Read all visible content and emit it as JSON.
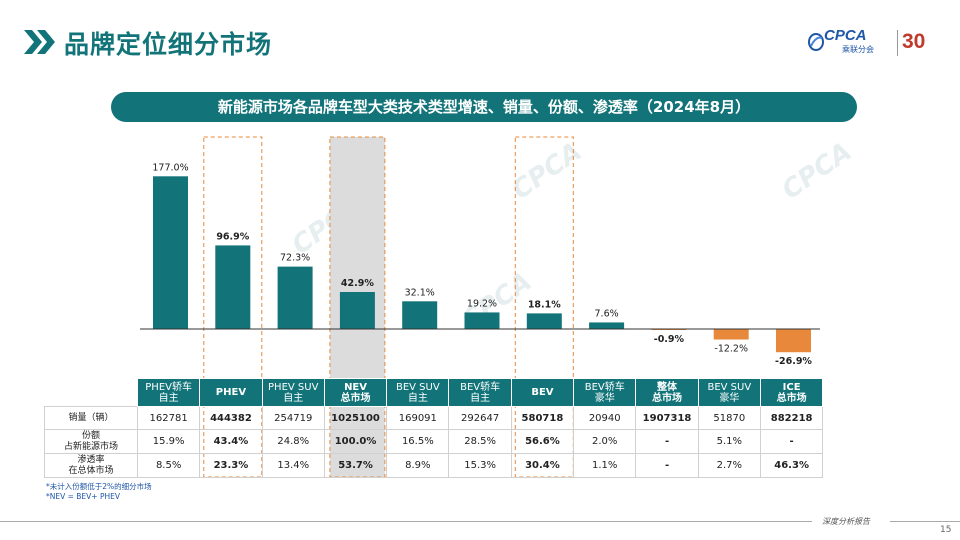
{
  "header": {
    "title": "品牌定位细分市场",
    "logo_text": "CPCA",
    "logo_sub": "乘联分会",
    "logo_anniv": "30"
  },
  "subtitle": "新能源市场各品牌车型大类技术类型增速、销量、份额、渗透率（2024年8月）",
  "chart_data": {
    "type": "bar",
    "categories": [
      "PHEV轿车\n自主",
      "PHEV",
      "PHEV SUV\n自主",
      "NEV\n总市场",
      "BEV SUV\n自主",
      "BEV轿车\n自主",
      "BEV",
      "BEV轿车\n豪华",
      "整体\n总市场",
      "BEV SUV\n豪华",
      "ICE\n总市场"
    ],
    "series": [
      {
        "values": [
          177.0,
          96.9,
          72.3,
          42.9,
          32.1,
          19.2,
          18.1,
          7.6,
          -0.9,
          -12.2,
          -26.9
        ],
        "labels": [
          "177.0%",
          "96.9%",
          "72.3%",
          "42.9%",
          "32.1%",
          "19.2%",
          "18.1%",
          "7.6%",
          "-0.9%",
          "-12.2%",
          "-26.9%"
        ]
      }
    ],
    "bold_label_index": [
      1,
      3,
      6,
      8,
      10
    ],
    "colors": {
      "positive": "#127479",
      "negative": "#e8883a"
    },
    "highlight": {
      "dashed_boxes": [
        1,
        6
      ],
      "shaded_box": 3
    }
  },
  "table": {
    "headers": [
      "PHEV轿车\n自主",
      "PHEV",
      "PHEV SUV\n自主",
      "NEV\n总市场",
      "BEV SUV\n自主",
      "BEV轿车\n自主",
      "BEV",
      "BEV轿车\n豪华",
      "整体\n总市场",
      "BEV SUV\n豪华",
      "ICE\n总市场"
    ],
    "rows": [
      {
        "label": "销量（辆）",
        "cells": [
          "162781",
          "444382",
          "254719",
          "1025100",
          "169091",
          "292647",
          "580718",
          "20940",
          "1907318",
          "51870",
          "882218"
        ]
      },
      {
        "label": "份额\n占新能源市场",
        "cells": [
          "15.9%",
          "43.4%",
          "24.8%",
          "100.0%",
          "16.5%",
          "28.5%",
          "56.6%",
          "2.0%",
          "-",
          "5.1%",
          "-"
        ]
      },
      {
        "label": "渗透率\n在总体市场",
        "cells": [
          "8.5%",
          "23.3%",
          "13.4%",
          "53.7%",
          "8.9%",
          "15.3%",
          "30.4%",
          "1.1%",
          "-",
          "2.7%",
          "46.3%"
        ]
      }
    ]
  },
  "notes": [
    "*未计入份额低于2%的细分市场",
    "*NEV = BEV+ PHEV"
  ],
  "footer": {
    "tag": "深度分析报告",
    "page": "15"
  }
}
